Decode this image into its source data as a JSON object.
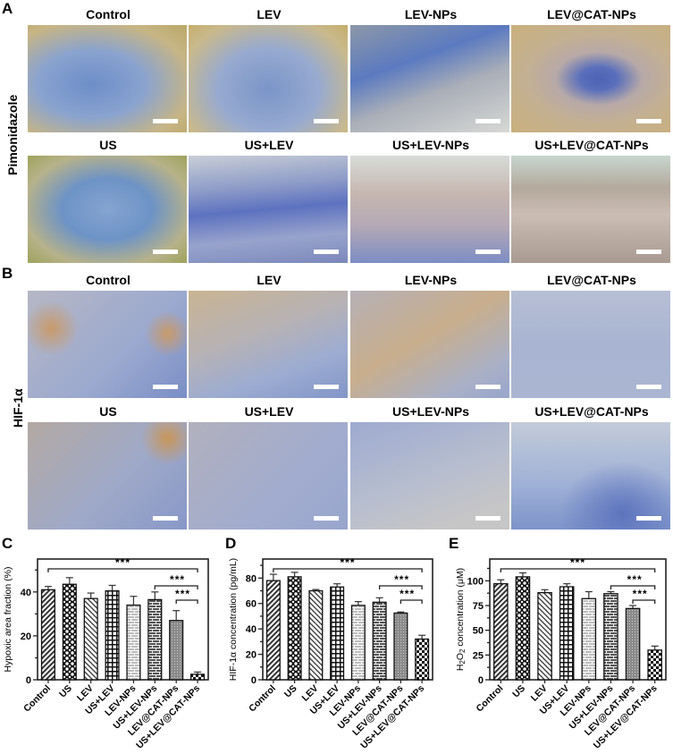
{
  "panels": {
    "A": {
      "letter": "A",
      "row_label": "Pimonidazole",
      "top_titles": [
        "Control",
        "LEV",
        "LEV-NPs",
        "LEV@CAT-NPs"
      ],
      "bottom_titles": [
        "US",
        "US+LEV",
        "US+LEV-NPs",
        "US+LEV@CAT-NPs"
      ]
    },
    "B": {
      "letter": "B",
      "row_label": "HIF-1α",
      "top_titles": [
        "Control",
        "LEV",
        "LEV-NPs",
        "LEV@CAT-NPs"
      ],
      "bottom_titles": [
        "US",
        "US+LEV",
        "US+LEV-NPs",
        "US+LEV@CAT-NPs"
      ]
    },
    "C": {
      "letter": "C"
    },
    "D": {
      "letter": "D"
    },
    "E": {
      "letter": "E"
    }
  },
  "chart_data": [
    {
      "type": "bar",
      "panel": "C",
      "categories": [
        "Control",
        "US",
        "LEV",
        "US+LEV",
        "LEV-NPs",
        "US+LEV-NPs",
        "LEV@CAT-NPs",
        "US+LEV@CAT-NPs"
      ],
      "values": [
        41,
        43.5,
        37,
        40.5,
        34,
        36.5,
        27,
        2.5
      ],
      "errors": [
        1.5,
        3,
        2.5,
        2.5,
        4,
        3.5,
        4.5,
        1
      ],
      "ylabel": "Hypoxic area fraction (%)",
      "yticks": [
        0,
        20,
        40
      ],
      "ylim": [
        0,
        55
      ],
      "significance": [
        {
          "from": "Control",
          "to": "US+LEV@CAT-NPs",
          "label": "***"
        },
        {
          "from": "US+LEV-NPs",
          "to": "US+LEV@CAT-NPs",
          "label": "***"
        },
        {
          "from": "LEV@CAT-NPs",
          "to": "US+LEV@CAT-NPs",
          "label": "***"
        }
      ]
    },
    {
      "type": "bar",
      "panel": "D",
      "categories": [
        "Control",
        "US",
        "LEV",
        "US+LEV",
        "LEV-NPs",
        "US+LEV-NPs",
        "LEV@CAT-NPs",
        "US+LEV@CAT-NPs"
      ],
      "values": [
        78,
        81,
        70,
        73,
        58.5,
        61,
        52.5,
        32
      ],
      "errors": [
        5,
        3.5,
        1,
        2.5,
        3,
        3.5,
        0.8,
        3
      ],
      "ylabel": "HIF-1α concentration (pg/mL)",
      "yticks": [
        0,
        20,
        40,
        60,
        80
      ],
      "ylim": [
        0,
        95
      ],
      "significance": [
        {
          "from": "Control",
          "to": "US+LEV@CAT-NPs",
          "label": "***"
        },
        {
          "from": "US+LEV-NPs",
          "to": "US+LEV@CAT-NPs",
          "label": "***"
        },
        {
          "from": "LEV@CAT-NPs",
          "to": "US+LEV@CAT-NPs",
          "label": "***"
        }
      ]
    },
    {
      "type": "bar",
      "panel": "E",
      "categories": [
        "Control",
        "US",
        "LEV",
        "US+LEV",
        "LEV-NPs",
        "US+LEV-NPs",
        "LEV@CAT-NPs",
        "US+LEV@CAT-NPs"
      ],
      "values": [
        97,
        104,
        88,
        94,
        82,
        87,
        72,
        30
      ],
      "errors": [
        4,
        4,
        3,
        3,
        7,
        2,
        3,
        4
      ],
      "ylabel": "H2O2 concentration (μM)",
      "yticks": [
        0,
        25,
        50,
        75,
        100
      ],
      "ylim": [
        0,
        122
      ],
      "significance": [
        {
          "from": "Control",
          "to": "US+LEV@CAT-NPs",
          "label": "***"
        },
        {
          "from": "US+LEV-NPs",
          "to": "US+LEV@CAT-NPs",
          "label": "***"
        },
        {
          "from": "LEV@CAT-NPs",
          "to": "US+LEV@CAT-NPs",
          "label": "***"
        }
      ]
    }
  ]
}
